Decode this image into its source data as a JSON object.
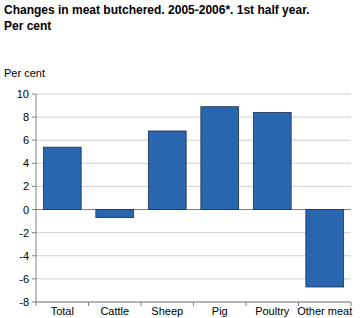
{
  "chart_data": {
    "type": "bar",
    "title": "Changes in meat butchered. 2005-2006*. 1st half year.",
    "subtitle": "Per cent",
    "y_label": "Per cent",
    "categories": [
      "Total",
      "Cattle",
      "Sheep",
      "Pig",
      "Poultry",
      "Other meat"
    ],
    "values": [
      5.4,
      -0.7,
      6.8,
      8.9,
      8.4,
      -6.7
    ],
    "color": "#2a66b0",
    "ylim": [
      -8,
      10
    ],
    "yticks": [
      -8,
      -6,
      -4,
      -2,
      0,
      2,
      4,
      6,
      8,
      10
    ],
    "grid": true
  }
}
